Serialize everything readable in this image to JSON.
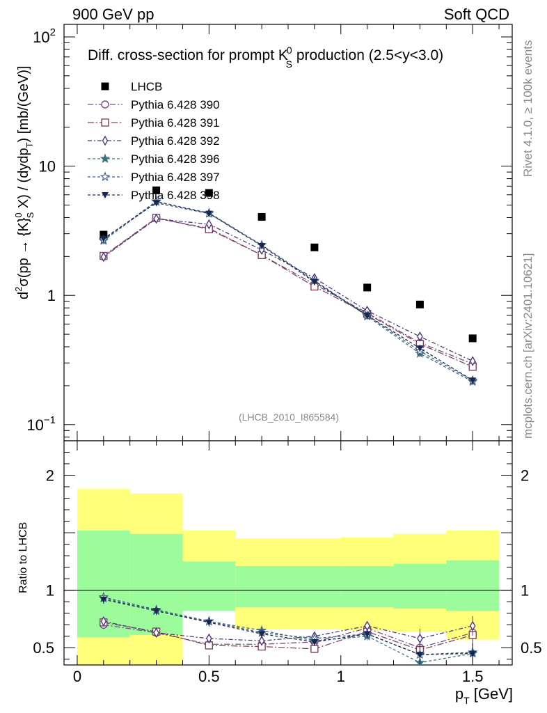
{
  "header": {
    "left": "900 GeV pp",
    "right": "Soft QCD"
  },
  "side_labels": {
    "rivet": "Rivet 4.1.0, ≥ 100k events",
    "mcplots": "mcplots.cern.ch [arXiv:2401.10621]"
  },
  "chart_data": [
    {
      "type": "scatter",
      "panel": "main",
      "title": "Diff. cross-section for prompt K⁰S production (2.5<y<3.0)",
      "title_parts": {
        "pre": "Diff. cross-section for prompt K",
        "sup": "0",
        "sub": "S",
        "post": " production (2.5<y<3.0)"
      },
      "watermark": "(LHCB_2010_I865584)",
      "ylabel": "d²σ(pp → {K}⁰S X) / (dydpT) [mb/(GeV)]",
      "ylabel_parts": {
        "a": "d",
        "a_sup": "2",
        "b": "σ(pp → {K}",
        "b_sup": "0",
        "b_sub": "S",
        "c": " X) / (dydp",
        "c_sub": "T",
        "d": ") [mb/(GeV)]"
      },
      "yscale": "log",
      "ylim": [
        0.075,
        125
      ],
      "xlim": [
        -0.05,
        1.65
      ],
      "ytick_labels": [
        {
          "value": 0.1,
          "base": "10",
          "exp": "−1"
        },
        {
          "value": 1,
          "base": "1",
          "exp": ""
        },
        {
          "value": 10,
          "base": "10",
          "exp": ""
        },
        {
          "value": 100,
          "base": "10",
          "exp": "2"
        }
      ],
      "x": [
        0.1,
        0.3,
        0.5,
        0.7,
        0.9,
        1.1,
        1.3,
        1.5
      ],
      "series": [
        {
          "name": "LHCB",
          "color": "#000000",
          "marker": "square-filled",
          "dash": "none",
          "values": [
            2.95,
            6.5,
            6.2,
            4.05,
            2.35,
            1.15,
            0.85,
            0.465
          ]
        },
        {
          "name": "Pythia 6.428 390",
          "color": "#7a4a8a",
          "marker": "circle-open",
          "dash": "8,3,2,3",
          "values": [
            2.0,
            3.95,
            3.3,
            2.05,
            1.22,
            0.73,
            0.43,
            0.295
          ]
        },
        {
          "name": "Pythia 6.428 391",
          "color": "#80405e",
          "marker": "square-open",
          "dash": "9,3,2,3",
          "values": [
            2.02,
            3.98,
            3.25,
            2.05,
            1.17,
            0.72,
            0.42,
            0.28
          ]
        },
        {
          "name": "Pythia 6.428 392",
          "color": "#4a3a82",
          "marker": "diamond-open",
          "dash": "6,3,2,3",
          "values": [
            1.98,
            3.92,
            3.55,
            2.25,
            1.36,
            0.76,
            0.48,
            0.31
          ]
        },
        {
          "name": "Pythia 6.428 396",
          "color": "#3f6f80",
          "marker": "star-filled",
          "dash": "4,3",
          "values": [
            2.65,
            5.3,
            4.35,
            2.45,
            1.3,
            0.69,
            0.355,
            0.215
          ]
        },
        {
          "name": "Pythia 6.428 397",
          "color": "#3a5c86",
          "marker": "star-open",
          "dash": "4,3",
          "values": [
            2.7,
            5.35,
            4.3,
            2.45,
            1.3,
            0.7,
            0.37,
            0.22
          ]
        },
        {
          "name": "Pythia 6.428 398",
          "color": "#1a2850",
          "marker": "triangle-down-filled",
          "dash": "4,3",
          "values": [
            2.75,
            5.2,
            4.3,
            2.42,
            1.27,
            0.7,
            0.39,
            0.22
          ]
        }
      ]
    },
    {
      "type": "scatter",
      "panel": "ratio",
      "ylabel": "Ratio to LHCB",
      "xlabel": "pT [GeV]",
      "xlabel_parts": {
        "main": "p",
        "sub": "T",
        "unit": " [GeV]"
      },
      "xlim": [
        -0.05,
        1.65
      ],
      "ylim": [
        0.35,
        2.3
      ],
      "xtick_labels": [
        {
          "value": 0,
          "label": "0"
        },
        {
          "value": 0.5,
          "label": "0.5"
        },
        {
          "value": 1,
          "label": "1"
        },
        {
          "value": 1.5,
          "label": "1.5"
        }
      ],
      "ytick_labels": [
        {
          "value": 0.5,
          "label": "0.5"
        },
        {
          "value": 1,
          "label": "1"
        },
        {
          "value": 2,
          "label": "2"
        }
      ],
      "bands": {
        "yellow_color": "#ffff7a",
        "green_color": "#9cfc9c",
        "bins": [
          {
            "x0": 0.0,
            "x1": 0.2,
            "yellow": [
              0.35,
              1.88
            ],
            "green": [
              0.59,
              1.52
            ]
          },
          {
            "x0": 0.2,
            "x1": 0.4,
            "yellow": [
              0.35,
              1.84
            ],
            "green": [
              0.61,
              1.49
            ]
          },
          {
            "x0": 0.4,
            "x1": 0.6,
            "yellow": [
              0.82,
              1.52
            ],
            "green": [
              0.82,
              1.25
            ]
          },
          {
            "x0": 0.6,
            "x1": 0.8,
            "yellow": [
              0.66,
              1.45
            ],
            "green": [
              0.85,
              1.21
            ]
          },
          {
            "x0": 0.8,
            "x1": 1.0,
            "yellow": [
              0.66,
              1.45
            ],
            "green": [
              0.85,
              1.21
            ]
          },
          {
            "x0": 1.0,
            "x1": 1.2,
            "yellow": [
              0.65,
              1.46
            ],
            "green": [
              0.85,
              1.21
            ]
          },
          {
            "x0": 1.2,
            "x1": 1.4,
            "yellow": [
              0.64,
              1.49
            ],
            "green": [
              0.84,
              1.23
            ]
          },
          {
            "x0": 1.4,
            "x1": 1.6,
            "yellow": [
              0.57,
              1.52
            ],
            "green": [
              0.82,
              1.26
            ]
          }
        ]
      },
      "x": [
        0.1,
        0.3,
        0.5,
        0.7,
        0.9,
        1.1,
        1.3,
        1.5
      ],
      "series": [
        {
          "name": "Pythia 6.428 390",
          "values": [
            0.7,
            0.63,
            0.53,
            0.53,
            0.55,
            0.67,
            0.5,
            0.63
          ]
        },
        {
          "name": "Pythia 6.428 391",
          "values": [
            0.72,
            0.64,
            0.52,
            0.51,
            0.49,
            0.64,
            0.48,
            0.61
          ]
        },
        {
          "name": "Pythia 6.428 392",
          "values": [
            0.73,
            0.63,
            0.58,
            0.56,
            0.6,
            0.69,
            0.58,
            0.69
          ]
        },
        {
          "name": "Pythia 6.428 396",
          "values": [
            0.93,
            0.82,
            0.73,
            0.65,
            0.56,
            0.6,
            0.37,
            0.45
          ]
        },
        {
          "name": "Pythia 6.428 397",
          "values": [
            0.94,
            0.83,
            0.73,
            0.63,
            0.58,
            0.62,
            0.44,
            0.46
          ]
        },
        {
          "name": "Pythia 6.428 398",
          "values": [
            0.92,
            0.82,
            0.72,
            0.62,
            0.55,
            0.62,
            0.44,
            0.45
          ]
        }
      ]
    }
  ]
}
